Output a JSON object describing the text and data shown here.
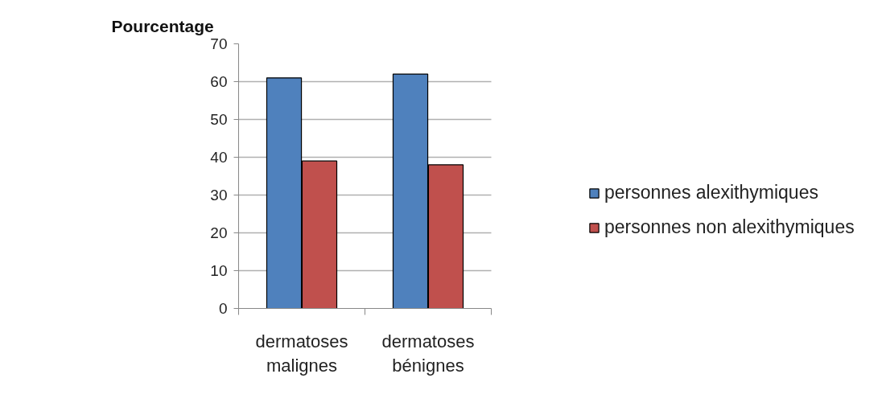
{
  "chart_data": {
    "type": "bar",
    "ylabel": "Pourcentage",
    "categories": [
      "dermatoses malignes",
      "dermatoses bénignes"
    ],
    "series": [
      {
        "name": "personnes alexithymiques",
        "color": "#4f81bd",
        "values": [
          61,
          62
        ]
      },
      {
        "name": "personnes non alexithymiques",
        "color": "#c0504d",
        "values": [
          39,
          38
        ]
      }
    ],
    "ylim": [
      0,
      70
    ],
    "yticks": [
      0,
      10,
      20,
      30,
      40,
      50,
      60,
      70
    ],
    "grid": "y",
    "legend": "right"
  }
}
